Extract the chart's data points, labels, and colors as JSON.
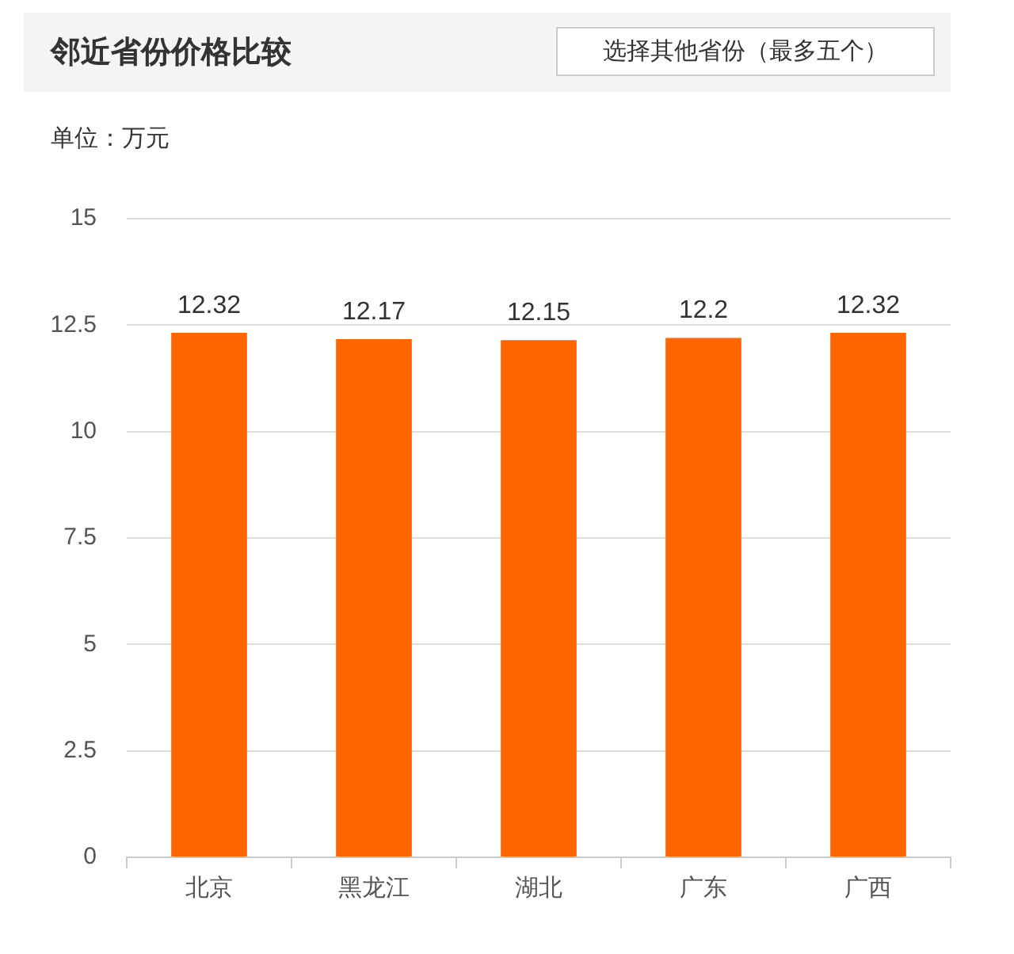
{
  "chart_data": {
    "type": "bar",
    "title": "邻近省份价格比较",
    "ylabel": "单位：万元",
    "annotations": [
      "选择其他省份（最多五个）"
    ],
    "categories": [
      "北京",
      "黑龙江",
      "湖北",
      "广东",
      "广西"
    ],
    "values": [
      12.32,
      12.17,
      12.15,
      12.2,
      12.32
    ],
    "color": "#ff6600",
    "ylim": [
      0,
      15
    ],
    "yticks": [
      0,
      2.5,
      5,
      7.5,
      10,
      12.5,
      15
    ],
    "grid": "y",
    "legend": false,
    "data_labels": true
  }
}
